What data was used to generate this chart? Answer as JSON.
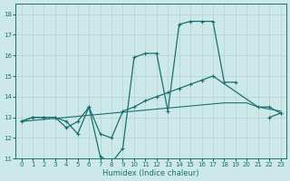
{
  "xlabel": "Humidex (Indice chaleur)",
  "ylabel": "",
  "xlim": [
    -0.5,
    23.5
  ],
  "ylim": [
    11,
    18.5
  ],
  "yticks": [
    11,
    12,
    13,
    14,
    15,
    16,
    17,
    18
  ],
  "xticks": [
    0,
    1,
    2,
    3,
    4,
    5,
    6,
    7,
    8,
    9,
    10,
    11,
    12,
    13,
    14,
    15,
    16,
    17,
    18,
    19,
    20,
    21,
    22,
    23
  ],
  "bg_color": "#cce8e8",
  "line_color": "#1a7070",
  "grid_color": "#b8d4d4",
  "series": {
    "line1_seg1": {
      "x": [
        0,
        1,
        2,
        3,
        4,
        5,
        6,
        7,
        8,
        9,
        10,
        11,
        12,
        13,
        14,
        15,
        16,
        17,
        18,
        19
      ],
      "y": [
        12.8,
        13.0,
        13.0,
        13.0,
        12.8,
        12.2,
        13.5,
        11.1,
        10.8,
        11.5,
        15.9,
        16.1,
        16.1,
        13.3,
        17.5,
        17.65,
        17.65,
        17.65,
        14.7,
        14.7
      ]
    },
    "line1_seg2": {
      "x": [
        22,
        23
      ],
      "y": [
        13.0,
        13.2
      ]
    },
    "line2": {
      "x": [
        0,
        1,
        2,
        3,
        4,
        5,
        6,
        7,
        8,
        9,
        10,
        11,
        12,
        13,
        14,
        15,
        16,
        17,
        21,
        22,
        23
      ],
      "y": [
        12.8,
        13.0,
        13.0,
        13.0,
        12.5,
        12.8,
        13.5,
        12.2,
        12.0,
        13.3,
        13.5,
        13.8,
        14.0,
        14.2,
        14.4,
        14.6,
        14.8,
        15.0,
        13.5,
        13.5,
        13.2
      ]
    },
    "line3": {
      "x": [
        0,
        1,
        2,
        3,
        4,
        5,
        6,
        7,
        8,
        9,
        10,
        11,
        12,
        13,
        14,
        15,
        16,
        17,
        18,
        19,
        20,
        21,
        22,
        23
      ],
      "y": [
        12.8,
        12.85,
        12.9,
        12.95,
        13.0,
        13.05,
        13.1,
        13.15,
        13.2,
        13.25,
        13.3,
        13.35,
        13.4,
        13.45,
        13.5,
        13.55,
        13.6,
        13.65,
        13.7,
        13.7,
        13.7,
        13.5,
        13.4,
        13.3
      ]
    }
  }
}
